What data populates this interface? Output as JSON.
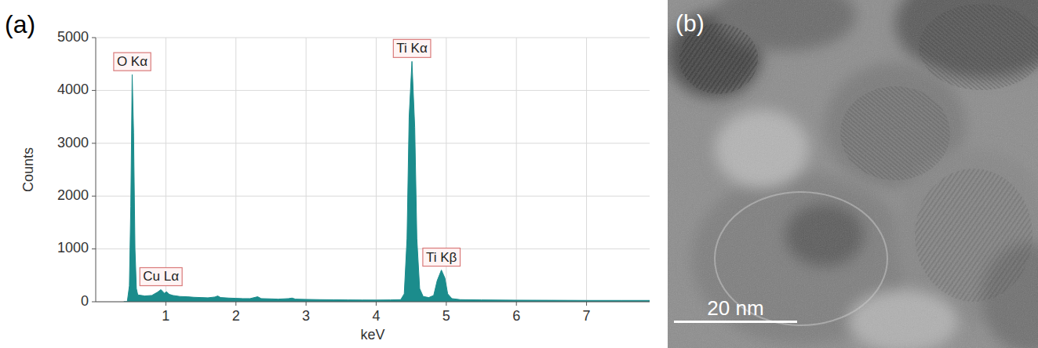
{
  "chart_data": {
    "type": "area",
    "panel_label": "(a)",
    "x_label": "keV",
    "y_label": "Counts",
    "color": "#1b8c8c",
    "grid": true,
    "xlim": [
      0,
      7.9
    ],
    "xticks": [
      1,
      2,
      3,
      4,
      5,
      6,
      7
    ],
    "ylim": [
      0,
      5000
    ],
    "yticks": [
      0,
      1000,
      2000,
      3000,
      4000,
      5000
    ],
    "x": [
      0.4,
      0.45,
      0.48,
      0.5,
      0.52,
      0.54,
      0.56,
      0.58,
      0.6,
      0.7,
      0.8,
      0.88,
      0.93,
      0.98,
      1.01,
      1.05,
      1.1,
      1.2,
      1.3,
      1.4,
      1.5,
      1.6,
      1.7,
      1.74,
      1.78,
      1.9,
      2.0,
      2.1,
      2.2,
      2.31,
      2.36,
      2.5,
      2.6,
      2.75,
      2.8,
      2.85,
      3.0,
      3.2,
      3.4,
      3.6,
      3.8,
      4.0,
      4.2,
      4.35,
      4.4,
      4.44,
      4.47,
      4.51,
      4.55,
      4.58,
      4.62,
      4.67,
      4.75,
      4.82,
      4.87,
      4.93,
      4.98,
      5.02,
      5.08,
      5.2,
      5.5,
      6.0,
      6.5,
      7.0,
      7.5,
      7.9
    ],
    "values": [
      0,
      0,
      300,
      1800,
      4300,
      3200,
      1000,
      250,
      130,
      110,
      120,
      180,
      230,
      160,
      190,
      140,
      120,
      100,
      95,
      85,
      80,
      75,
      90,
      110,
      80,
      70,
      65,
      60,
      60,
      95,
      60,
      55,
      50,
      60,
      70,
      50,
      45,
      40,
      38,
      35,
      33,
      32,
      35,
      40,
      150,
      1200,
      3500,
      4550,
      3300,
      1200,
      250,
      100,
      80,
      120,
      400,
      600,
      450,
      150,
      60,
      40,
      35,
      30,
      28,
      25,
      25,
      25
    ],
    "annotations": [
      {
        "text": "O Kα",
        "x": 0.52
      },
      {
        "text": "Cu Lα",
        "x": 0.93
      },
      {
        "text": "Ti Kα",
        "x": 4.51
      },
      {
        "text": "Ti Kβ",
        "x": 4.93
      }
    ]
  },
  "image_panel": {
    "panel_label": "(b)",
    "scale_bar": {
      "value": 20,
      "label": "20 nm"
    }
  }
}
